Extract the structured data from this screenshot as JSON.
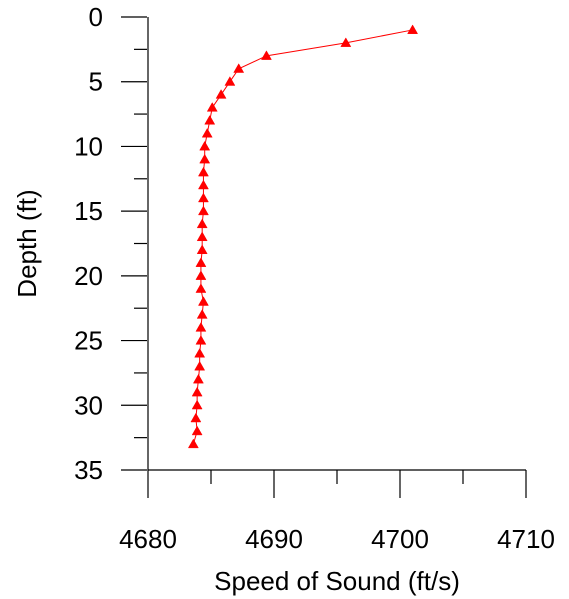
{
  "chart_data": {
    "type": "line",
    "title": "",
    "xlabel": "Speed of Sound (ft/s)",
    "ylabel": "Depth (ft)",
    "xlim": [
      4680,
      4710
    ],
    "ylim": [
      0,
      35
    ],
    "y_inverted": true,
    "x_ticks": [
      4680,
      4690,
      4700,
      4710
    ],
    "y_ticks": [
      0,
      5,
      10,
      15,
      20,
      25,
      30,
      35
    ],
    "grid": false,
    "legend": "none",
    "series": [
      {
        "color": "#ff0000",
        "marker": "triangle",
        "points": [
          {
            "x": 4701.0,
            "y": 1
          },
          {
            "x": 4695.7,
            "y": 2
          },
          {
            "x": 4689.4,
            "y": 3
          },
          {
            "x": 4687.2,
            "y": 4
          },
          {
            "x": 4686.5,
            "y": 5
          },
          {
            "x": 4685.8,
            "y": 6
          },
          {
            "x": 4685.1,
            "y": 7
          },
          {
            "x": 4684.9,
            "y": 8
          },
          {
            "x": 4684.7,
            "y": 9
          },
          {
            "x": 4684.5,
            "y": 10
          },
          {
            "x": 4684.5,
            "y": 11
          },
          {
            "x": 4684.4,
            "y": 12
          },
          {
            "x": 4684.4,
            "y": 13
          },
          {
            "x": 4684.4,
            "y": 14
          },
          {
            "x": 4684.4,
            "y": 15
          },
          {
            "x": 4684.3,
            "y": 16
          },
          {
            "x": 4684.3,
            "y": 17
          },
          {
            "x": 4684.3,
            "y": 18
          },
          {
            "x": 4684.2,
            "y": 19
          },
          {
            "x": 4684.2,
            "y": 20
          },
          {
            "x": 4684.2,
            "y": 21
          },
          {
            "x": 4684.4,
            "y": 22
          },
          {
            "x": 4684.3,
            "y": 23
          },
          {
            "x": 4684.2,
            "y": 24
          },
          {
            "x": 4684.2,
            "y": 25
          },
          {
            "x": 4684.1,
            "y": 26
          },
          {
            "x": 4684.1,
            "y": 27
          },
          {
            "x": 4684.0,
            "y": 28
          },
          {
            "x": 4683.9,
            "y": 29
          },
          {
            "x": 4683.9,
            "y": 30
          },
          {
            "x": 4683.8,
            "y": 31
          },
          {
            "x": 4683.9,
            "y": 32
          },
          {
            "x": 4683.6,
            "y": 33
          }
        ]
      }
    ]
  }
}
